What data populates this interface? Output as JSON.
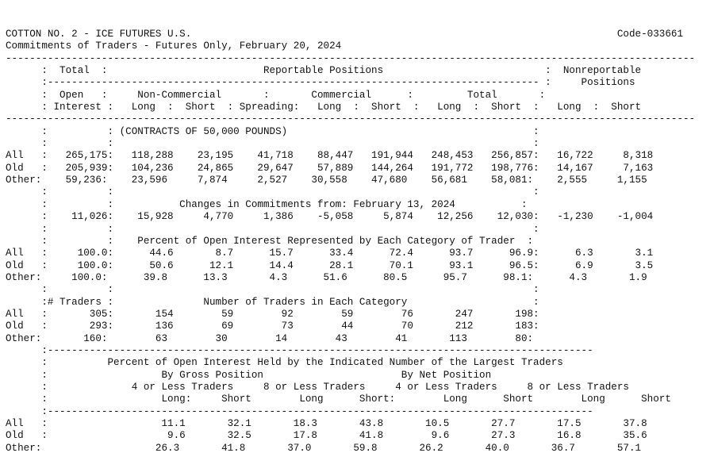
{
  "report": {
    "title": "COTTON NO. 2 - ICE FUTURES U.S.",
    "code": "Code-033661",
    "subtitle": "Commitments of Traders - Futures Only, February 20, 2024",
    "lines": [
      "COTTON NO. 2 - ICE FUTURES U.S.                                                                       Code-033661",
      "Commitments of Traders - Futures Only, February 20, 2024",
      "-------------------------------------------------------------------------------------------------------------------",
      "      :  Total  :                          Reportable Positions                           :  Nonreportable",
      "      :---------------------------------------------------------------------------------- :     Positions",
      "      :  Open   :     Non-Commercial       :       Commercial      :         Total       :",
      "      : Interest :   Long  :  Short  : Spreading:   Long  :  Short  :   Long  :  Short  :   Long  :  Short",
      "-------------------------------------------------------------------------------------------------------------------",
      "      :          : (CONTRACTS OF 50,000 POUNDS)                                         :",
      "      :          :                                                                      :",
      "All   :   265,175:   118,288    23,195    41,718    88,447   191,944   248,453   256,857:   16,722     8,318",
      "Old   :   205,939:   104,236    24,865    29,647    57,889   144,264   191,772   198,776:   14,167     7,163",
      "Other:    59,236:    23,596     7,874     2,527    30,558    47,680    56,681    58,081:    2,555     1,155",
      "      :          :                                                                      :",
      "      :          :           Changes in Commitments from: February 13, 2024           :",
      "      :    11,026:    15,928     4,770     1,386    -5,058     5,874    12,256    12,030:   -1,230    -1,004",
      "      :          :                                                                      :",
      "      :          :    Percent of Open Interest Represented by Each Category of Trader  :",
      "All   :     100.0:      44.6       8.7      15.7      33.4      72.4      93.7      96.9:      6.3       3.1",
      "Old   :     100.0:      50.6      12.1      14.4      28.1      70.1      93.1      96.5:      6.9       3.5",
      "Other:     100.0:      39.8      13.3       4.3      51.6      80.5      95.7      98.1:      4.3       1.9",
      "      :          :                                                                      :",
      "      :# Traders :               Number of Traders in Each Category                     :",
      "All   :       305:       154        59        92        59        76       247       198:",
      "Old   :       293:       136        69        73        44        70       212       183:",
      "Other:       160:        63        30        14        43        41       113        80:",
      "      :-------------------------------------------------------------------------------------------",
      "      :          Percent of Open Interest Held by the Indicated Number of the Largest Traders",
      "      :                   By Gross Position                       By Net Position",
      "      :              4 or Less Traders     8 or Less Traders     4 or Less Traders     8 or Less Traders",
      "      :                   Long:     Short        Long      Short:        Long      Short        Long      Short",
      "      :-------------------------------------------------------------------------------------------",
      "All   :                   11.1       32.1       18.3       43.8       10.5       27.7       17.5       37.8",
      "Old   :                    9.6       32.5       17.8       41.8        9.6       27.3       16.8       35.6",
      "Other:                   26.3       41.8       37.0       59.8       26.2       40.0       36.7       57.1"
    ]
  }
}
